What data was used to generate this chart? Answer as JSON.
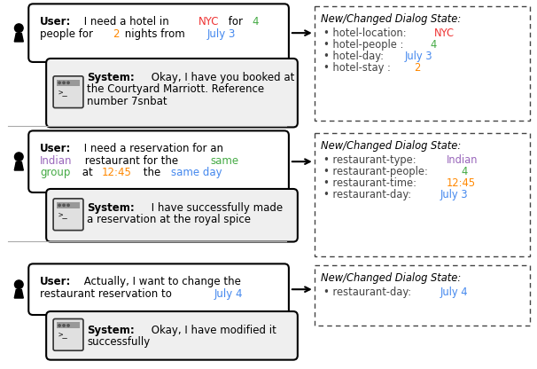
{
  "background_color": "#ffffff",
  "fig_w": 6.06,
  "fig_h": 4.16,
  "dpi": 100,
  "turns": [
    {
      "user_parts": [
        {
          "text": "User:",
          "color": "#000000",
          "bold": true
        },
        {
          "text": " I need a hotel in ",
          "color": "#000000",
          "bold": false
        },
        {
          "text": "NYC",
          "color": "#ee3333",
          "bold": false
        },
        {
          "text": " for ",
          "color": "#000000",
          "bold": false
        },
        {
          "text": "4",
          "color": "#44aa44",
          "bold": false
        },
        {
          "text": "\npeople for ",
          "color": "#000000",
          "bold": false
        },
        {
          "text": "2",
          "color": "#ff8800",
          "bold": false
        },
        {
          "text": " nights from ",
          "color": "#000000",
          "bold": false
        },
        {
          "text": "July 3",
          "color": "#4488ee",
          "bold": false
        }
      ],
      "system_parts": [
        {
          "text": "System:",
          "color": "#000000",
          "bold": true
        },
        {
          "text": " Okay, I have you booked at\nthe Courtyard Marriott. Reference\nnumber 7snbat",
          "color": "#000000",
          "bold": false
        }
      ],
      "state_title": "New/Changed Dialog State:",
      "state_items": [
        {
          "prefix": "hotel-location: ",
          "value": "NYC",
          "value_color": "#ee3333"
        },
        {
          "prefix": "hotel-people : ",
          "value": "4",
          "value_color": "#44aa44"
        },
        {
          "prefix": "hotel-day: ",
          "value": "July 3",
          "value_color": "#4488ee"
        },
        {
          "prefix": "hotel-stay : ",
          "value": "2",
          "value_color": "#ff8800"
        }
      ]
    },
    {
      "user_parts": [
        {
          "text": "User:",
          "color": "#000000",
          "bold": true
        },
        {
          "text": " I need a reservation for an\n",
          "color": "#000000",
          "bold": false
        },
        {
          "text": "Indian",
          "color": "#9966bb",
          "bold": false
        },
        {
          "text": " restaurant for the ",
          "color": "#000000",
          "bold": false
        },
        {
          "text": "same\ngroup",
          "color": "#44aa44",
          "bold": false
        },
        {
          "text": " at ",
          "color": "#000000",
          "bold": false
        },
        {
          "text": "12:45",
          "color": "#ff8800",
          "bold": false
        },
        {
          "text": " the ",
          "color": "#000000",
          "bold": false
        },
        {
          "text": "same day",
          "color": "#4488ee",
          "bold": false
        }
      ],
      "system_parts": [
        {
          "text": "System:",
          "color": "#000000",
          "bold": true
        },
        {
          "text": " I have successfully made\na reservation at the royal spice",
          "color": "#000000",
          "bold": false
        }
      ],
      "state_title": "New/Changed Dialog State:",
      "state_items": [
        {
          "prefix": "restaurant-type: ",
          "value": "Indian",
          "value_color": "#9966bb"
        },
        {
          "prefix": "restaurant-people: ",
          "value": "4",
          "value_color": "#44aa44"
        },
        {
          "prefix": "restaurant-time: ",
          "value": "12:45",
          "value_color": "#ff8800"
        },
        {
          "prefix": "restaurant-day: ",
          "value": "July 3",
          "value_color": "#4488ee"
        }
      ]
    },
    {
      "user_parts": [
        {
          "text": "User:",
          "color": "#000000",
          "bold": true
        },
        {
          "text": " Actually, I want to change the\nrestaurant reservation to ",
          "color": "#000000",
          "bold": false
        },
        {
          "text": "July 4",
          "color": "#4488ee",
          "bold": false
        }
      ],
      "system_parts": [
        {
          "text": "System:",
          "color": "#000000",
          "bold": true
        },
        {
          "text": " Okay, I have modified it\nsuccessfully",
          "color": "#000000",
          "bold": false
        }
      ],
      "state_title": "New/Changed Dialog State:",
      "state_items": [
        {
          "prefix": "restaurant-day: ",
          "value": "July 4",
          "value_color": "#4488ee"
        }
      ]
    }
  ]
}
